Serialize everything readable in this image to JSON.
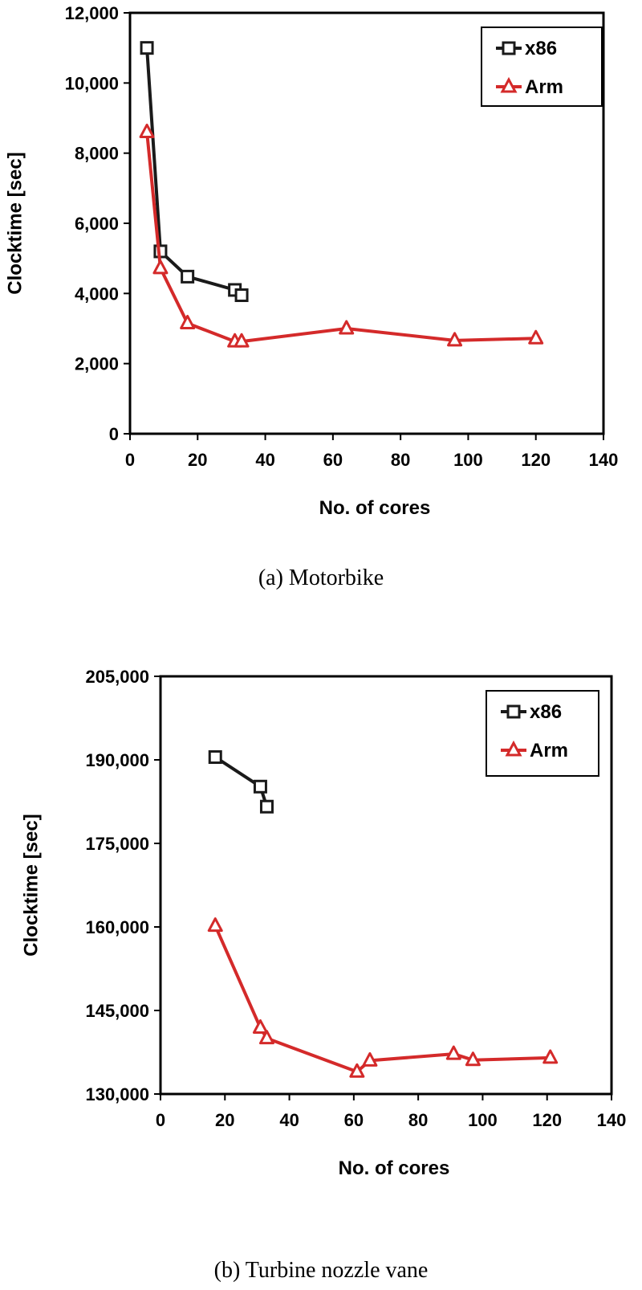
{
  "chart_data": [
    {
      "type": "line",
      "caption": "(a)  Motorbike",
      "xlabel": "No. of cores",
      "ylabel": "Clocktime [sec]",
      "xlim": [
        0,
        140
      ],
      "ylim": [
        0,
        12000
      ],
      "xticks": [
        0,
        20,
        40,
        60,
        80,
        100,
        120,
        140
      ],
      "yticks": [
        0,
        2000,
        4000,
        6000,
        8000,
        10000,
        12000
      ],
      "xtick_labels": [
        "0",
        "20",
        "40",
        "60",
        "80",
        "100",
        "120",
        "140"
      ],
      "ytick_labels": [
        "0",
        "2,000",
        "4,000",
        "6,000",
        "8,000",
        "10,000",
        "12,000"
      ],
      "grid": false,
      "legend_position": "top-right",
      "series": [
        {
          "name": "x86",
          "marker": "square",
          "color": "#1a1a1a",
          "x": [
            5,
            9,
            17,
            31,
            33
          ],
          "y": [
            11000,
            5200,
            4480,
            4100,
            3950
          ]
        },
        {
          "name": "Arm",
          "marker": "triangle",
          "color": "#d42a2a",
          "x": [
            5,
            9,
            17,
            31,
            33,
            64,
            96,
            120
          ],
          "y": [
            8600,
            4720,
            3150,
            2630,
            2630,
            3000,
            2660,
            2720
          ]
        }
      ]
    },
    {
      "type": "line",
      "caption": "(b)  Turbine  nozzle  vane",
      "xlabel": "No. of cores",
      "ylabel": "Clocktime [sec]",
      "xlim": [
        0,
        140
      ],
      "ylim": [
        130000,
        205000
      ],
      "xticks": [
        0,
        20,
        40,
        60,
        80,
        100,
        120,
        140
      ],
      "yticks": [
        130000,
        145000,
        160000,
        175000,
        190000,
        205000
      ],
      "xtick_labels": [
        "0",
        "20",
        "40",
        "60",
        "80",
        "100",
        "120",
        "140"
      ],
      "ytick_labels": [
        "130,000",
        "145,000",
        "160,000",
        "175,000",
        "190,000",
        "205,000"
      ],
      "grid": false,
      "legend_position": "top-right",
      "series": [
        {
          "name": "x86",
          "marker": "square",
          "color": "#1a1a1a",
          "x": [
            17,
            31,
            33
          ],
          "y": [
            190500,
            185200,
            181600
          ]
        },
        {
          "name": "Arm",
          "marker": "triangle",
          "color": "#d42a2a",
          "x": [
            17,
            31,
            33,
            61,
            65,
            91,
            97,
            121
          ],
          "y": [
            160200,
            141900,
            140000,
            134000,
            136000,
            137200,
            136100,
            136500
          ]
        }
      ]
    }
  ]
}
